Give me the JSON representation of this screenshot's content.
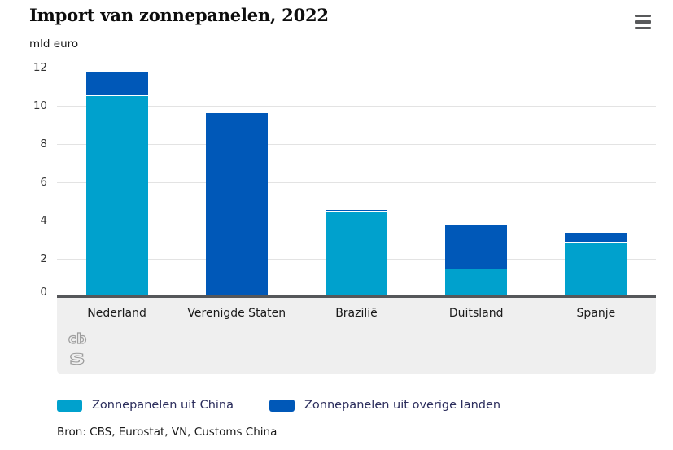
{
  "header": {
    "title": "Import van zonnepanelen, 2022",
    "unit": "mld euro"
  },
  "chart_data": {
    "type": "bar",
    "stacked": true,
    "title": "Import van zonnepanelen, 2022",
    "unit": "mld euro",
    "categories": [
      "Nederland",
      "Verenigde Staten",
      "Brazilië",
      "Duitsland",
      "Spanje"
    ],
    "series": [
      {
        "name": "Zonnepanelen uit China",
        "color": "#00a1cd",
        "values": [
          10.5,
          0.05,
          4.45,
          1.45,
          2.8
        ]
      },
      {
        "name": "Zonnepanelen uit overige landen",
        "color": "#0058b8",
        "values": [
          1.25,
          9.55,
          0.1,
          2.3,
          0.55
        ]
      }
    ],
    "ylim": [
      0,
      12
    ],
    "yticks": [
      0,
      2,
      4,
      6,
      8,
      10,
      12
    ],
    "grid": true,
    "legend_position": "bottom",
    "axis_color": "#55575a",
    "gridline_color": "#e3e3e3"
  },
  "footer": {
    "source": "Bron: CBS, Eurostat, VN, Customs China"
  },
  "branding": {
    "logo": "cbs-logo"
  }
}
